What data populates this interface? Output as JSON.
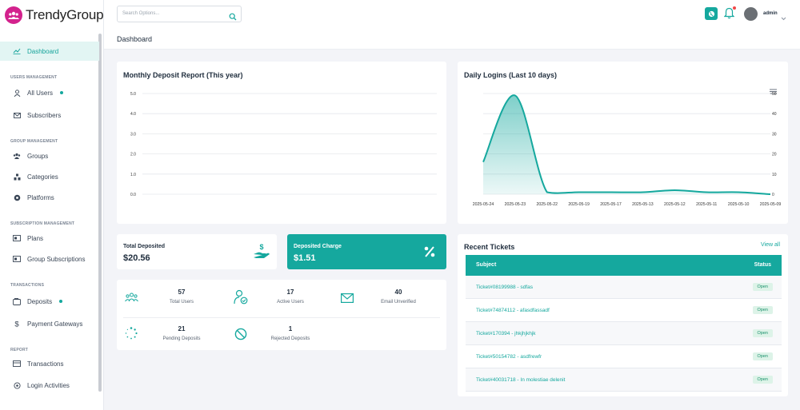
{
  "app": {
    "name": "TrendyGroup"
  },
  "header": {
    "search_placeholder": "Search Options...",
    "breadcrumb": "Dashboard",
    "user_name": "admin"
  },
  "sidebar": {
    "items": [
      {
        "label": "Dashboard",
        "icon": "dashboard-icon",
        "active": true
      },
      {
        "section": "USERS MANAGEMENT"
      },
      {
        "label": "All Users",
        "icon": "user-icon",
        "dot": true
      },
      {
        "label": "Subscribers",
        "icon": "mail-icon"
      },
      {
        "section": "GROUP MANAGEMENT"
      },
      {
        "label": "Groups",
        "icon": "group-icon"
      },
      {
        "label": "Categories",
        "icon": "categories-icon"
      },
      {
        "label": "Platforms",
        "icon": "platforms-icon"
      },
      {
        "section": "SUBSCRIPTION MANAGEMENT"
      },
      {
        "label": "Plans",
        "icon": "plans-icon"
      },
      {
        "label": "Group Subscriptions",
        "icon": "subscriptions-icon"
      },
      {
        "section": "TRANSACTIONS"
      },
      {
        "label": "Deposits",
        "icon": "wallet-icon",
        "dot": true
      },
      {
        "label": "Payment Gateways",
        "icon": "dollar-icon"
      },
      {
        "section": "REPORT"
      },
      {
        "label": "Transactions",
        "icon": "transactions-icon"
      },
      {
        "label": "Login Activities",
        "icon": "activity-icon"
      }
    ]
  },
  "deposit_report": {
    "title": "Monthly Deposit Report (This year)"
  },
  "logins": {
    "title": "Daily Logins (Last 10 days)"
  },
  "stats": {
    "total_deposited": {
      "label": "Total Deposited",
      "value": "$20.56"
    },
    "deposited_charge": {
      "label": "Deposited Charge",
      "value": "$1.51"
    }
  },
  "mini_stats": [
    {
      "number": "57",
      "label": "Total Users",
      "icon": "users-icon"
    },
    {
      "number": "17",
      "label": "Active Users",
      "icon": "user-check-icon"
    },
    {
      "number": "40",
      "label": "Email Unverified",
      "icon": "envelope-icon"
    },
    {
      "number": "21",
      "label": "Pending Deposits",
      "icon": "spinner-icon"
    },
    {
      "number": "1",
      "label": "Rejected Deposits",
      "icon": "ban-icon"
    }
  ],
  "tickets": {
    "title": "Recent Tickets",
    "view_all": "View all",
    "columns": [
      "Subject",
      "Status"
    ],
    "rows": [
      {
        "subject": "Ticket#08199988 - sdfas",
        "status": "Open"
      },
      {
        "subject": "Ticket#74874112 - afasdfassadf",
        "status": "Open"
      },
      {
        "subject": "Ticket#170394 - jhkjhjkhjk",
        "status": "Open"
      },
      {
        "subject": "Ticket#50154782 - asdfrewfr",
        "status": "Open"
      },
      {
        "subject": "Ticket#40031718 - In molestiae delenit",
        "status": "Open"
      }
    ]
  },
  "colors": {
    "accent": "#15a89e",
    "brand": "#d3228d",
    "badge": "#ddf3e8"
  },
  "chart_data": [
    {
      "type": "line",
      "title": "Monthly Deposit Report (This year)",
      "y_ticks": [
        "0.0",
        "1.0",
        "2.0",
        "3.0",
        "4.0",
        "5.0"
      ],
      "ylim": [
        0,
        5
      ],
      "grid": true,
      "series": []
    },
    {
      "type": "area",
      "title": "Daily Logins (Last 10 days)",
      "categories": [
        "2025-05-24",
        "2025-05-23",
        "2025-05-22",
        "2025-05-19",
        "2025-05-17",
        "2025-05-13",
        "2025-05-12",
        "2025-05-11",
        "2025-05-10",
        "2025-05-09"
      ],
      "series": [
        {
          "values": [
            16,
            49,
            1,
            1,
            1,
            1,
            2,
            1,
            1,
            0
          ]
        }
      ],
      "y_ticks": [
        "0",
        "10",
        "20",
        "30",
        "40",
        "50"
      ],
      "ylim": [
        0,
        50
      ],
      "grid": true
    }
  ]
}
